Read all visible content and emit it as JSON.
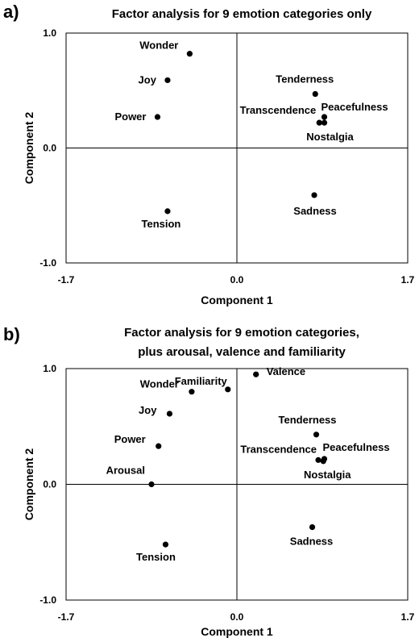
{
  "chart_data": [
    {
      "type": "scatter",
      "panel_label": "a)",
      "title": [
        "Factor analysis for 9 emotion categories only"
      ],
      "xlabel": "Component 1",
      "ylabel": "Component 2",
      "xlim": [
        -1.7,
        1.7
      ],
      "ylim": [
        -1.0,
        1.0
      ],
      "xticks": [
        "-1.7",
        "0.0",
        "1.7"
      ],
      "yticks": [
        "1.0",
        "0.0",
        "-1.0"
      ],
      "grid": false,
      "points": [
        {
          "label": "Wonder",
          "x": -0.47,
          "y": 0.82
        },
        {
          "label": "Joy",
          "x": -0.69,
          "y": 0.59
        },
        {
          "label": "Power",
          "x": -0.79,
          "y": 0.27
        },
        {
          "label": "Tension",
          "x": -0.69,
          "y": -0.55
        },
        {
          "label": "Tenderness",
          "x": 0.78,
          "y": 0.47
        },
        {
          "label": "Peacefulness",
          "x": 0.87,
          "y": 0.27
        },
        {
          "label": "Transcendence",
          "x": 0.82,
          "y": 0.22
        },
        {
          "label": "Nostalgia",
          "x": 0.87,
          "y": 0.22
        },
        {
          "label": "Sadness",
          "x": 0.77,
          "y": -0.41
        }
      ]
    },
    {
      "type": "scatter",
      "panel_label": "b)",
      "title": [
        "Factor analysis for 9 emotion categories,",
        "plus arousal, valence and familiarity"
      ],
      "xlabel": "Component 1",
      "ylabel": "Component 2",
      "xlim": [
        -1.7,
        1.7
      ],
      "ylim": [
        -1.0,
        1.0
      ],
      "xticks": [
        "-1.7",
        "0.0",
        "1.7"
      ],
      "yticks": [
        "1.0",
        "0.0",
        "-1.0"
      ],
      "grid": false,
      "points": [
        {
          "label": "Familiarity",
          "x": -0.09,
          "y": 0.82
        },
        {
          "label": "Valence",
          "x": 0.19,
          "y": 0.95
        },
        {
          "label": "Wonder",
          "x": -0.45,
          "y": 0.8
        },
        {
          "label": "Joy",
          "x": -0.67,
          "y": 0.61
        },
        {
          "label": "Power",
          "x": -0.78,
          "y": 0.33
        },
        {
          "label": "Arousal",
          "x": -0.85,
          "y": 0.0
        },
        {
          "label": "Tension",
          "x": -0.71,
          "y": -0.52
        },
        {
          "label": "Tenderness",
          "x": 0.79,
          "y": 0.43
        },
        {
          "label": "Peacefulness",
          "x": 0.87,
          "y": 0.22
        },
        {
          "label": "Transcendence",
          "x": 0.81,
          "y": 0.21
        },
        {
          "label": "Nostalgia",
          "x": 0.86,
          "y": 0.2
        },
        {
          "label": "Sadness",
          "x": 0.75,
          "y": -0.37
        }
      ]
    }
  ]
}
